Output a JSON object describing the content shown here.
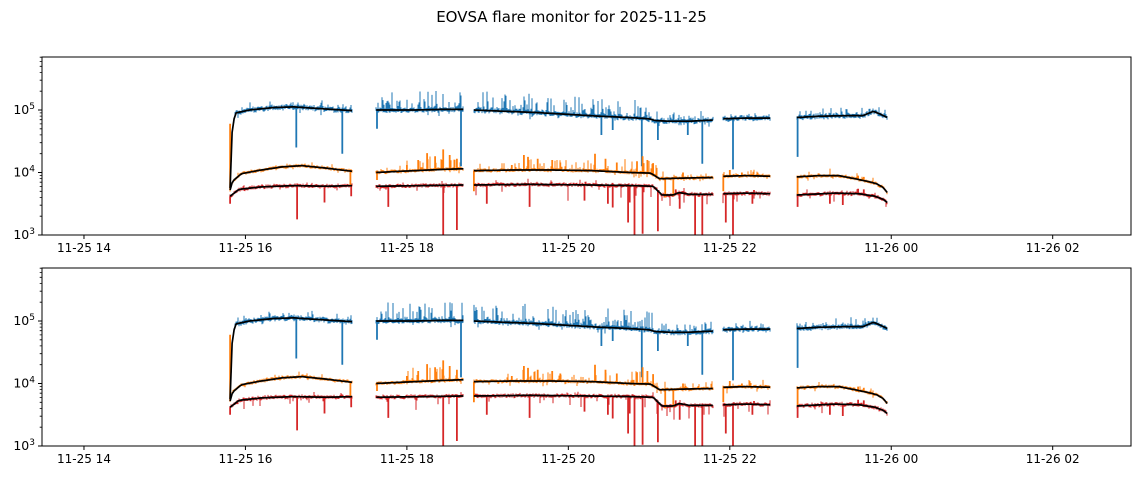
{
  "chart_data": {
    "type": "line",
    "title": "EOVSA flare monitor for 2025-11-25",
    "panels": [
      "upper flux panel",
      "lower flux panel"
    ],
    "x_axis": {
      "unit": "UT time (MM-DD HH)",
      "lim_hours": [
        13.48,
        26.97
      ],
      "ticks": [
        {
          "t": 14,
          "label": "11-25 14"
        },
        {
          "t": 16,
          "label": "11-25 16"
        },
        {
          "t": 18,
          "label": "11-25 18"
        },
        {
          "t": 20,
          "label": "11-25 20"
        },
        {
          "t": 22,
          "label": "11-25 22"
        },
        {
          "t": 24,
          "label": "11-26 00"
        },
        {
          "t": 26,
          "label": "11-26 02"
        }
      ]
    },
    "y_axis": {
      "scale": "log",
      "lim_log10": [
        3,
        5.848
      ],
      "ticks": [
        {
          "log10": 3,
          "base": "10",
          "exp": "3"
        },
        {
          "log10": 4,
          "base": "10",
          "exp": "4"
        },
        {
          "log10": 5,
          "base": "10",
          "exp": "5"
        }
      ]
    },
    "grid": false,
    "legend": null,
    "median_color": "#000000",
    "noise_seeds": [
      20251125,
      20251126
    ],
    "segments_ut_hours": [
      [
        15.81,
        17.32
      ],
      [
        17.62,
        18.7
      ],
      [
        18.83,
        21.79
      ],
      [
        21.92,
        22.5
      ],
      [
        22.83,
        23.95
      ]
    ],
    "series": [
      {
        "name": "series-blue-raw",
        "color": "#1f77b4",
        "band_log10": 0.028,
        "base": [
          [
            15.81,
            3.75
          ],
          [
            15.83,
            4.6
          ],
          [
            15.87,
            4.95
          ],
          [
            16.05,
            5.0
          ],
          [
            16.35,
            5.04
          ],
          [
            16.6,
            5.05
          ],
          [
            16.95,
            5.02
          ],
          [
            17.32,
            4.99
          ],
          [
            17.62,
            5.0
          ],
          [
            18.1,
            5.0
          ],
          [
            18.45,
            5.01
          ],
          [
            18.7,
            5.01
          ],
          [
            18.83,
            5.0
          ],
          [
            19.2,
            4.98
          ],
          [
            19.6,
            4.96
          ],
          [
            20.0,
            4.93
          ],
          [
            20.4,
            4.9
          ],
          [
            20.75,
            4.88
          ],
          [
            21.0,
            4.86
          ],
          [
            21.08,
            4.83
          ],
          [
            21.25,
            4.82
          ],
          [
            21.5,
            4.82
          ],
          [
            21.79,
            4.84
          ],
          [
            21.92,
            4.86
          ],
          [
            22.2,
            4.87
          ],
          [
            22.5,
            4.87
          ],
          [
            22.83,
            4.88
          ],
          [
            23.1,
            4.9
          ],
          [
            23.45,
            4.91
          ],
          [
            23.65,
            4.91
          ],
          [
            23.78,
            4.98
          ],
          [
            23.87,
            4.93
          ],
          [
            23.95,
            4.88
          ]
        ],
        "spikes_down": [
          [
            15.82,
            4.3
          ],
          [
            16.63,
            4.4
          ],
          [
            17.2,
            4.3
          ],
          [
            17.63,
            4.7
          ],
          [
            18.67,
            4.1
          ],
          [
            20.41,
            4.6
          ],
          [
            20.55,
            4.68
          ],
          [
            20.91,
            4.1
          ],
          [
            21.11,
            4.52
          ],
          [
            21.48,
            4.6
          ],
          [
            21.66,
            4.14
          ],
          [
            22.04,
            4.05
          ],
          [
            22.84,
            4.25
          ]
        ],
        "spikes_up": [],
        "noise_windows": [
          [
            15.81,
            17.32,
            0.25,
            0.09,
            0.05,
            0.06
          ],
          [
            17.62,
            18.71,
            0.5,
            0.27,
            0.06,
            0.08
          ],
          [
            18.83,
            21.1,
            0.55,
            0.27,
            0.06,
            0.08
          ],
          [
            21.1,
            21.79,
            0.4,
            0.13,
            0.05,
            0.06
          ],
          [
            21.91,
            22.5,
            0.35,
            0.1,
            0.05,
            0.05
          ],
          [
            22.83,
            23.96,
            0.4,
            0.11,
            0.05,
            0.05
          ]
        ]
      },
      {
        "name": "series-orange-raw",
        "color": "#ff7f0e",
        "band_log10": 0.02,
        "base": [
          [
            15.81,
            3.72
          ],
          [
            15.84,
            3.86
          ],
          [
            15.95,
            3.98
          ],
          [
            16.15,
            4.03
          ],
          [
            16.45,
            4.09
          ],
          [
            16.7,
            4.11
          ],
          [
            17.0,
            4.07
          ],
          [
            17.32,
            4.02
          ],
          [
            17.62,
            4.0
          ],
          [
            18.1,
            4.03
          ],
          [
            18.45,
            4.05
          ],
          [
            18.7,
            4.06
          ],
          [
            18.83,
            4.03
          ],
          [
            19.3,
            4.04
          ],
          [
            19.8,
            4.04
          ],
          [
            20.3,
            4.03
          ],
          [
            20.75,
            4.0
          ],
          [
            21.02,
            3.99
          ],
          [
            21.13,
            3.9
          ],
          [
            21.4,
            3.91
          ],
          [
            21.79,
            3.92
          ],
          [
            21.92,
            3.94
          ],
          [
            22.2,
            3.95
          ],
          [
            22.5,
            3.94
          ],
          [
            22.83,
            3.93
          ],
          [
            23.1,
            3.95
          ],
          [
            23.35,
            3.95
          ],
          [
            23.55,
            3.9
          ],
          [
            23.7,
            3.86
          ],
          [
            23.82,
            3.82
          ],
          [
            23.9,
            3.76
          ],
          [
            23.95,
            3.68
          ]
        ],
        "spikes_up": [
          [
            15.81,
            4.78
          ],
          [
            18.0,
            4.12
          ],
          [
            18.14,
            4.2
          ],
          [
            18.25,
            4.31
          ],
          [
            18.35,
            4.26
          ],
          [
            18.45,
            4.37
          ],
          [
            18.53,
            4.28
          ],
          [
            18.62,
            4.22
          ],
          [
            19.3,
            4.12
          ],
          [
            19.45,
            4.28
          ],
          [
            19.5,
            4.25
          ],
          [
            19.62,
            4.22
          ],
          [
            19.8,
            4.2
          ],
          [
            19.9,
            4.16
          ],
          [
            20.33,
            4.3
          ],
          [
            20.46,
            4.22
          ],
          [
            20.6,
            4.16
          ],
          [
            20.85,
            4.18
          ],
          [
            20.92,
            4.26
          ],
          [
            20.98,
            4.2
          ],
          [
            21.05,
            4.15
          ],
          [
            21.42,
            4.0
          ],
          [
            22.0,
            4.04
          ],
          [
            22.15,
            4.0
          ],
          [
            23.59,
            3.95
          ],
          [
            23.66,
            3.93
          ]
        ],
        "spikes_down": [
          [
            17.3,
            3.8
          ],
          [
            17.63,
            3.88
          ],
          [
            18.83,
            3.7
          ],
          [
            21.2,
            3.6
          ],
          [
            21.3,
            3.62
          ],
          [
            21.92,
            3.7
          ],
          [
            22.84,
            3.6
          ]
        ],
        "noise_windows": [
          [
            15.81,
            17.32,
            0.1,
            0.06,
            0.05,
            0.05
          ],
          [
            17.62,
            18.0,
            0.15,
            0.08,
            0.05,
            0.05
          ],
          [
            18.0,
            18.71,
            0.35,
            0.2,
            0.05,
            0.06
          ],
          [
            18.83,
            19.4,
            0.2,
            0.1,
            0.05,
            0.06
          ],
          [
            19.4,
            20.7,
            0.3,
            0.16,
            0.05,
            0.06
          ],
          [
            20.7,
            21.1,
            0.45,
            0.2,
            0.05,
            0.06
          ],
          [
            21.1,
            21.79,
            0.25,
            0.1,
            0.12,
            0.12
          ],
          [
            21.91,
            22.5,
            0.25,
            0.1,
            0.08,
            0.08
          ],
          [
            22.83,
            23.96,
            0.2,
            0.08,
            0.06,
            0.06
          ]
        ]
      },
      {
        "name": "series-red-raw",
        "color": "#d62728",
        "band_log10": 0.022,
        "base": [
          [
            15.81,
            3.62
          ],
          [
            15.92,
            3.73
          ],
          [
            16.2,
            3.77
          ],
          [
            16.6,
            3.79
          ],
          [
            17.0,
            3.78
          ],
          [
            17.32,
            3.79
          ],
          [
            17.62,
            3.78
          ],
          [
            18.2,
            3.79
          ],
          [
            18.7,
            3.8
          ],
          [
            18.83,
            3.8
          ],
          [
            19.5,
            3.81
          ],
          [
            20.3,
            3.8
          ],
          [
            20.8,
            3.79
          ],
          [
            21.05,
            3.78
          ],
          [
            21.16,
            3.64
          ],
          [
            21.3,
            3.64
          ],
          [
            21.37,
            3.68
          ],
          [
            21.5,
            3.65
          ],
          [
            21.79,
            3.65
          ],
          [
            21.92,
            3.66
          ],
          [
            22.2,
            3.67
          ],
          [
            22.5,
            3.66
          ],
          [
            22.83,
            3.64
          ],
          [
            23.3,
            3.67
          ],
          [
            23.6,
            3.66
          ],
          [
            23.8,
            3.62
          ],
          [
            23.9,
            3.57
          ],
          [
            23.95,
            3.52
          ]
        ],
        "spikes_down": [
          [
            15.81,
            3.5
          ],
          [
            16.64,
            3.25
          ],
          [
            16.98,
            3.52
          ],
          [
            17.31,
            3.62
          ],
          [
            17.77,
            3.45
          ],
          [
            18.45,
            2.7
          ],
          [
            18.62,
            3.08
          ],
          [
            18.99,
            3.5
          ],
          [
            19.52,
            3.45
          ],
          [
            20.2,
            3.55
          ],
          [
            20.49,
            3.5
          ],
          [
            20.55,
            3.44
          ],
          [
            20.74,
            3.2
          ],
          [
            20.76,
            3.52
          ],
          [
            20.82,
            2.7
          ],
          [
            20.92,
            3.02
          ],
          [
            21.11,
            3.06
          ],
          [
            21.38,
            3.42
          ],
          [
            21.57,
            2.7
          ],
          [
            21.66,
            2.6
          ],
          [
            21.95,
            3.2
          ],
          [
            22.04,
            2.6
          ],
          [
            22.28,
            3.5
          ],
          [
            22.84,
            3.45
          ],
          [
            23.24,
            3.5
          ],
          [
            23.4,
            3.48
          ]
        ],
        "spikes_up": [
          [
            21.33,
            3.73
          ],
          [
            22.3,
            3.72
          ],
          [
            23.59,
            3.74
          ],
          [
            23.66,
            3.73
          ]
        ],
        "noise_windows": [
          [
            15.81,
            17.32,
            0.05,
            0.05,
            0.08,
            0.15
          ],
          [
            17.62,
            18.71,
            0.05,
            0.05,
            0.1,
            0.2
          ],
          [
            18.83,
            21.1,
            0.06,
            0.06,
            0.12,
            0.22
          ],
          [
            21.1,
            21.79,
            0.08,
            0.07,
            0.12,
            0.2
          ],
          [
            21.91,
            22.5,
            0.06,
            0.06,
            0.1,
            0.18
          ],
          [
            22.83,
            23.96,
            0.06,
            0.06,
            0.1,
            0.15
          ]
        ]
      }
    ]
  }
}
